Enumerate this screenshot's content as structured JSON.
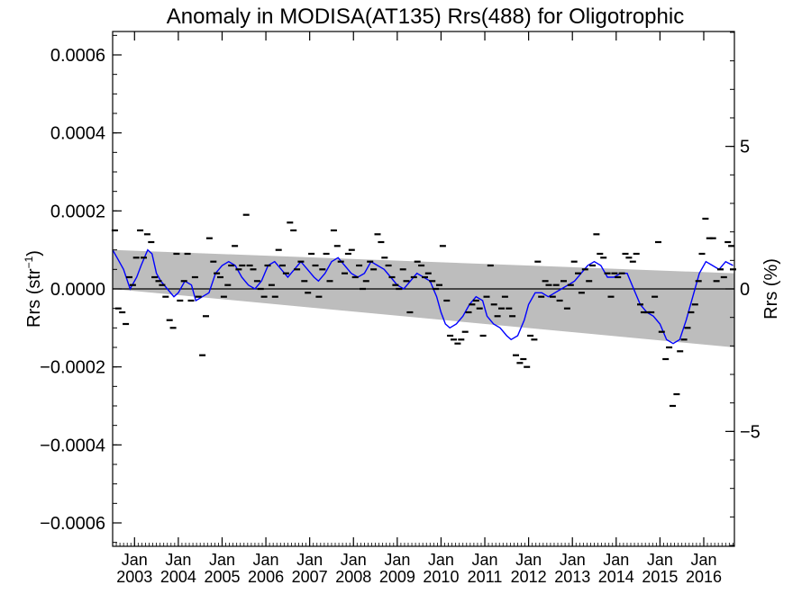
{
  "chart_data": {
    "type": "line",
    "title": "Anomaly in MODISA(AT135) Rrs(488) for Oligotrophic",
    "ylabel_left_base": "Rrs (str",
    "ylabel_left_sup": "−1",
    "ylabel_left_end": ")",
    "ylabel_right": "Rrs (%)",
    "ylim_left": [
      -0.00066,
      0.00066
    ],
    "ylim_right": [
      -9.03,
      9.03
    ],
    "xlim": [
      2002.5,
      2016.7
    ],
    "left_ticks": [
      {
        "value": 0.0006,
        "label": "0.0006"
      },
      {
        "value": 0.0004,
        "label": "0.0004"
      },
      {
        "value": 0.0002,
        "label": "0.0002"
      },
      {
        "value": 0.0,
        "label": "0.0000"
      },
      {
        "value": -0.0002,
        "label": "−0.0002"
      },
      {
        "value": -0.0004,
        "label": "−0.0004"
      },
      {
        "value": -0.0006,
        "label": "−0.0006"
      }
    ],
    "right_ticks": [
      {
        "value": 5,
        "label": "5"
      },
      {
        "value": 0,
        "label": "0"
      },
      {
        "value": -5,
        "label": "−5"
      }
    ],
    "x_ticks": [
      {
        "value": 2003.0,
        "month": "Jan",
        "year": "2003"
      },
      {
        "value": 2004.0,
        "month": "Jan",
        "year": "2004"
      },
      {
        "value": 2005.0,
        "month": "Jan",
        "year": "2005"
      },
      {
        "value": 2006.0,
        "month": "Jan",
        "year": "2006"
      },
      {
        "value": 2007.0,
        "month": "Jan",
        "year": "2007"
      },
      {
        "value": 2008.0,
        "month": "Jan",
        "year": "2008"
      },
      {
        "value": 2009.0,
        "month": "Jan",
        "year": "2009"
      },
      {
        "value": 2010.0,
        "month": "Jan",
        "year": "2010"
      },
      {
        "value": 2011.0,
        "month": "Jan",
        "year": "2011"
      },
      {
        "value": 2012.0,
        "month": "Jan",
        "year": "2012"
      },
      {
        "value": 2013.0,
        "month": "Jan",
        "year": "2013"
      },
      {
        "value": 2014.0,
        "month": "Jan",
        "year": "2014"
      },
      {
        "value": 2015.0,
        "month": "Jan",
        "year": "2015"
      },
      {
        "value": 2016.0,
        "month": "Jan",
        "year": "2016"
      }
    ],
    "trend_band": {
      "upper": [
        [
          2002.5,
          0.0001
        ],
        [
          2016.7,
          4e-05
        ]
      ],
      "lower": [
        [
          2002.5,
          0.0
        ],
        [
          2016.7,
          -0.00015
        ]
      ]
    },
    "zero_line": 0.0,
    "monthly_points": [
      [
        2002.55,
        0.00015
      ],
      [
        2002.63,
        -5e-05
      ],
      [
        2002.72,
        -6e-05
      ],
      [
        2002.8,
        -9e-05
      ],
      [
        2002.88,
        3e-05
      ],
      [
        2002.96,
        1e-05
      ],
      [
        2003.04,
        8e-05
      ],
      [
        2003.13,
        0.00015
      ],
      [
        2003.21,
        8e-05
      ],
      [
        2003.29,
        0.00014
      ],
      [
        2003.38,
        0.00012
      ],
      [
        2003.46,
        3e-05
      ],
      [
        2003.55,
        2e-05
      ],
      [
        2003.63,
        1e-05
      ],
      [
        2003.71,
        -2e-05
      ],
      [
        2003.8,
        -8e-05
      ],
      [
        2003.88,
        -0.0001
      ],
      [
        2003.96,
        9e-05
      ],
      [
        2004.04,
        -3e-05
      ],
      [
        2004.13,
        2e-05
      ],
      [
        2004.21,
        9e-05
      ],
      [
        2004.29,
        -3e-05
      ],
      [
        2004.38,
        3e-05
      ],
      [
        2004.46,
        -2e-05
      ],
      [
        2004.55,
        -0.00017
      ],
      [
        2004.63,
        -7e-05
      ],
      [
        2004.71,
        0.00013
      ],
      [
        2004.8,
        7e-05
      ],
      [
        2004.88,
        4e-05
      ],
      [
        2004.96,
        3e-05
      ],
      [
        2005.04,
        -2e-05
      ],
      [
        2005.13,
        1e-05
      ],
      [
        2005.21,
        6e-05
      ],
      [
        2005.29,
        0.00011
      ],
      [
        2005.38,
        5e-05
      ],
      [
        2005.46,
        6e-05
      ],
      [
        2005.55,
        0.00019
      ],
      [
        2005.63,
        6e-05
      ],
      [
        2005.71,
        5e-05
      ],
      [
        2005.8,
        2e-05
      ],
      [
        2005.88,
        0.0
      ],
      [
        2005.96,
        -2e-05
      ],
      [
        2006.04,
        6e-05
      ],
      [
        2006.13,
        1e-05
      ],
      [
        2006.21,
        -2e-05
      ],
      [
        2006.29,
        0.0001
      ],
      [
        2006.38,
        6e-05
      ],
      [
        2006.46,
        4e-05
      ],
      [
        2006.55,
        0.00017
      ],
      [
        2006.63,
        0.00015
      ],
      [
        2006.71,
        5e-05
      ],
      [
        2006.8,
        7e-05
      ],
      [
        2006.88,
        2e-05
      ],
      [
        2006.96,
        -1e-05
      ],
      [
        2007.04,
        9e-05
      ],
      [
        2007.13,
        6e-05
      ],
      [
        2007.21,
        -2e-05
      ],
      [
        2007.29,
        5e-05
      ],
      [
        2007.38,
        9e-05
      ],
      [
        2007.46,
        2e-05
      ],
      [
        2007.55,
        0.00015
      ],
      [
        2007.63,
        0.00011
      ],
      [
        2007.71,
        7e-05
      ],
      [
        2007.8,
        4e-05
      ],
      [
        2007.88,
        9e-05
      ],
      [
        2007.96,
        0.0001
      ],
      [
        2008.04,
        3e-05
      ],
      [
        2008.13,
        6e-05
      ],
      [
        2008.21,
        0.0
      ],
      [
        2008.29,
        2e-05
      ],
      [
        2008.38,
        7e-05
      ],
      [
        2008.46,
        5e-05
      ],
      [
        2008.55,
        0.00014
      ],
      [
        2008.63,
        0.00012
      ],
      [
        2008.71,
        8e-05
      ],
      [
        2008.8,
        6e-05
      ],
      [
        2008.88,
        3e-05
      ],
      [
        2008.96,
        1e-05
      ],
      [
        2009.04,
        0.0
      ],
      [
        2009.13,
        5e-05
      ],
      [
        2009.21,
        2e-05
      ],
      [
        2009.29,
        -6e-05
      ],
      [
        2009.38,
        3e-05
      ],
      [
        2009.46,
        7e-05
      ],
      [
        2009.55,
        6e-05
      ],
      [
        2009.63,
        3e-05
      ],
      [
        2009.71,
        4e-05
      ],
      [
        2009.8,
        2e-05
      ],
      [
        2009.88,
        0.0
      ],
      [
        2009.96,
        1e-05
      ],
      [
        2010.04,
        0.00011
      ],
      [
        2010.13,
        -3e-05
      ],
      [
        2010.21,
        -0.00012
      ],
      [
        2010.29,
        -0.00013
      ],
      [
        2010.38,
        -0.00014
      ],
      [
        2010.46,
        -0.00013
      ],
      [
        2010.55,
        -0.00011
      ],
      [
        2010.63,
        -6e-05
      ],
      [
        2010.71,
        -4e-05
      ],
      [
        2010.8,
        -3e-05
      ],
      [
        2010.88,
        -5e-05
      ],
      [
        2010.96,
        -0.00012
      ],
      [
        2011.04,
        -2e-05
      ],
      [
        2011.13,
        6e-05
      ],
      [
        2011.21,
        -4e-05
      ],
      [
        2011.29,
        -7e-05
      ],
      [
        2011.38,
        -5e-05
      ],
      [
        2011.46,
        -2e-05
      ],
      [
        2011.55,
        -5e-05
      ],
      [
        2011.63,
        -7e-05
      ],
      [
        2011.71,
        -0.00017
      ],
      [
        2011.8,
        -0.00019
      ],
      [
        2011.88,
        -0.00018
      ],
      [
        2011.96,
        -0.0002
      ],
      [
        2012.04,
        -0.00012
      ],
      [
        2012.13,
        -0.00013
      ],
      [
        2012.21,
        7e-05
      ],
      [
        2012.29,
        -2e-05
      ],
      [
        2012.38,
        2e-05
      ],
      [
        2012.46,
        1e-05
      ],
      [
        2012.55,
        -2e-05
      ],
      [
        2012.63,
        1e-05
      ],
      [
        2012.71,
        -3e-05
      ],
      [
        2012.8,
        2e-05
      ],
      [
        2012.88,
        -5e-05
      ],
      [
        2012.96,
        1e-05
      ],
      [
        2013.04,
        7e-05
      ],
      [
        2013.13,
        4e-05
      ],
      [
        2013.21,
        -1e-05
      ],
      [
        2013.29,
        5e-05
      ],
      [
        2013.38,
        2e-05
      ],
      [
        2013.46,
        6e-05
      ],
      [
        2013.55,
        0.00014
      ],
      [
        2013.63,
        9e-05
      ],
      [
        2013.71,
        8e-05
      ],
      [
        2013.8,
        4e-05
      ],
      [
        2013.88,
        -2e-05
      ],
      [
        2013.96,
        4e-05
      ],
      [
        2014.04,
        3e-05
      ],
      [
        2014.13,
        4e-05
      ],
      [
        2014.21,
        9e-05
      ],
      [
        2014.29,
        8e-05
      ],
      [
        2014.38,
        7e-05
      ],
      [
        2014.46,
        9e-05
      ],
      [
        2014.55,
        -4e-05
      ],
      [
        2014.63,
        -6e-05
      ],
      [
        2014.71,
        -6e-05
      ],
      [
        2014.8,
        -6e-05
      ],
      [
        2014.88,
        -2e-05
      ],
      [
        2014.96,
        0.00012
      ],
      [
        2015.04,
        -0.00011
      ],
      [
        2015.13,
        -0.00018
      ],
      [
        2015.21,
        -0.00015
      ],
      [
        2015.29,
        -0.0003
      ],
      [
        2015.38,
        -0.00027
      ],
      [
        2015.46,
        -0.00016
      ],
      [
        2015.55,
        -0.00013
      ],
      [
        2015.63,
        -0.0001
      ],
      [
        2015.71,
        -6e-05
      ],
      [
        2015.8,
        -4e-05
      ],
      [
        2015.88,
        2e-05
      ],
      [
        2015.96,
        9e-05
      ],
      [
        2016.04,
        0.00018
      ],
      [
        2016.13,
        0.00013
      ],
      [
        2016.21,
        0.00013
      ],
      [
        2016.29,
        2e-05
      ],
      [
        2016.38,
        5e-05
      ],
      [
        2016.46,
        3e-05
      ],
      [
        2016.55,
        0.00012
      ],
      [
        2016.63,
        0.00011
      ],
      [
        2016.67,
        5e-05
      ]
    ],
    "running_mean": [
      [
        2002.5,
        0.0001
      ],
      [
        2002.6,
        8e-05
      ],
      [
        2002.75,
        5e-05
      ],
      [
        2002.9,
        0.0
      ],
      [
        2003.05,
        3e-05
      ],
      [
        2003.15,
        6e-05
      ],
      [
        2003.3,
        0.0001
      ],
      [
        2003.4,
        9e-05
      ],
      [
        2003.5,
        4e-05
      ],
      [
        2003.6,
        2e-05
      ],
      [
        2003.75,
        0.0
      ],
      [
        2003.9,
        -2e-05
      ],
      [
        2004.0,
        -1e-05
      ],
      [
        2004.15,
        2e-05
      ],
      [
        2004.3,
        1e-05
      ],
      [
        2004.4,
        -3e-05
      ],
      [
        2004.55,
        -2e-05
      ],
      [
        2004.7,
        -1e-05
      ],
      [
        2004.85,
        4e-05
      ],
      [
        2005.0,
        6e-05
      ],
      [
        2005.15,
        7e-05
      ],
      [
        2005.3,
        6e-05
      ],
      [
        2005.45,
        3e-05
      ],
      [
        2005.6,
        1e-05
      ],
      [
        2005.75,
        0.0
      ],
      [
        2005.9,
        2e-05
      ],
      [
        2006.05,
        6e-05
      ],
      [
        2006.2,
        7e-05
      ],
      [
        2006.35,
        5e-05
      ],
      [
        2006.5,
        3e-05
      ],
      [
        2006.65,
        5e-05
      ],
      [
        2006.8,
        7e-05
      ],
      [
        2006.95,
        5e-05
      ],
      [
        2007.1,
        3e-05
      ],
      [
        2007.2,
        2e-05
      ],
      [
        2007.35,
        4e-05
      ],
      [
        2007.5,
        7e-05
      ],
      [
        2007.65,
        8e-05
      ],
      [
        2007.8,
        6e-05
      ],
      [
        2007.95,
        4e-05
      ],
      [
        2008.1,
        3e-05
      ],
      [
        2008.25,
        4e-05
      ],
      [
        2008.4,
        7e-05
      ],
      [
        2008.55,
        6e-05
      ],
      [
        2008.7,
        5e-05
      ],
      [
        2008.85,
        3e-05
      ],
      [
        2009.0,
        1e-05
      ],
      [
        2009.15,
        0.0
      ],
      [
        2009.3,
        2e-05
      ],
      [
        2009.45,
        4e-05
      ],
      [
        2009.6,
        3e-05
      ],
      [
        2009.75,
        2e-05
      ],
      [
        2009.9,
        -2e-05
      ],
      [
        2010.0,
        -6e-05
      ],
      [
        2010.1,
        -9e-05
      ],
      [
        2010.2,
        -0.0001
      ],
      [
        2010.35,
        -9e-05
      ],
      [
        2010.5,
        -7e-05
      ],
      [
        2010.65,
        -4e-05
      ],
      [
        2010.8,
        -2e-05
      ],
      [
        2010.95,
        -3e-05
      ],
      [
        2011.05,
        -7e-05
      ],
      [
        2011.2,
        -9e-05
      ],
      [
        2011.35,
        -0.0001
      ],
      [
        2011.5,
        -0.00012
      ],
      [
        2011.6,
        -0.00013
      ],
      [
        2011.75,
        -0.00012
      ],
      [
        2011.9,
        -8e-05
      ],
      [
        2012.0,
        -4e-05
      ],
      [
        2012.15,
        -1e-05
      ],
      [
        2012.3,
        -1e-05
      ],
      [
        2012.45,
        -2e-05
      ],
      [
        2012.6,
        -1e-05
      ],
      [
        2012.75,
        0.0
      ],
      [
        2012.9,
        1e-05
      ],
      [
        2013.05,
        2e-05
      ],
      [
        2013.2,
        4e-05
      ],
      [
        2013.35,
        6e-05
      ],
      [
        2013.5,
        7e-05
      ],
      [
        2013.65,
        6e-05
      ],
      [
        2013.8,
        3e-05
      ],
      [
        2013.95,
        3e-05
      ],
      [
        2014.1,
        4e-05
      ],
      [
        2014.25,
        4e-05
      ],
      [
        2014.4,
        0.0
      ],
      [
        2014.55,
        -4e-05
      ],
      [
        2014.7,
        -6e-05
      ],
      [
        2014.85,
        -7e-05
      ],
      [
        2015.0,
        -9e-05
      ],
      [
        2015.15,
        -0.00013
      ],
      [
        2015.3,
        -0.00014
      ],
      [
        2015.45,
        -0.00013
      ],
      [
        2015.6,
        -8e-05
      ],
      [
        2015.75,
        -2e-05
      ],
      [
        2015.9,
        4e-05
      ],
      [
        2016.05,
        7e-05
      ],
      [
        2016.2,
        6e-05
      ],
      [
        2016.35,
        5e-05
      ],
      [
        2016.5,
        7e-05
      ],
      [
        2016.67,
        6e-05
      ]
    ],
    "colors": {
      "band": "#bdbdbd",
      "mean_line": "#0000ff",
      "points": "#000000",
      "axis": "#000000"
    }
  }
}
